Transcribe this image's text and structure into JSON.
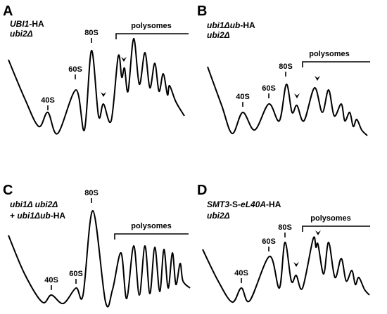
{
  "panels": [
    {
      "letter": "A",
      "genotype": [
        [
          {
            "text": "UBI1",
            "italic": true
          },
          {
            "text": "-HA",
            "italic": false
          }
        ],
        [
          {
            "text": "ubi2Δ",
            "italic": true
          }
        ]
      ],
      "peaks": [
        "40S",
        "60S",
        "80S"
      ],
      "polysomes": "polysomes"
    },
    {
      "letter": "B",
      "genotype": [
        [
          {
            "text": "ubi1Δub",
            "italic": true
          },
          {
            "text": "-HA",
            "italic": false
          }
        ],
        [
          {
            "text": "ubi2Δ",
            "italic": true
          }
        ]
      ],
      "peaks": [
        "40S",
        "60S",
        "80S"
      ],
      "polysomes": "polysomes"
    },
    {
      "letter": "C",
      "genotype": [
        [
          {
            "text": "ubi1Δ ubi2Δ",
            "italic": true
          }
        ],
        [
          {
            "text": "+ ",
            "italic": false
          },
          {
            "text": "ubi1Δub",
            "italic": true
          },
          {
            "text": "-HA",
            "italic": false
          }
        ]
      ],
      "peaks": [
        "40S",
        "60S",
        "80S"
      ],
      "polysomes": "polysomes"
    },
    {
      "letter": "D",
      "genotype": [
        [
          {
            "text": "SMT3",
            "italic": true
          },
          {
            "text": "-S-",
            "italic": false
          },
          {
            "text": "eL40A",
            "italic": true
          },
          {
            "text": "-HA",
            "italic": false
          }
        ],
        [
          {
            "text": "ubi2Δ",
            "italic": true
          }
        ]
      ],
      "peaks": [
        "40S",
        "60S",
        "80S"
      ],
      "polysomes": "polysomes"
    }
  ]
}
